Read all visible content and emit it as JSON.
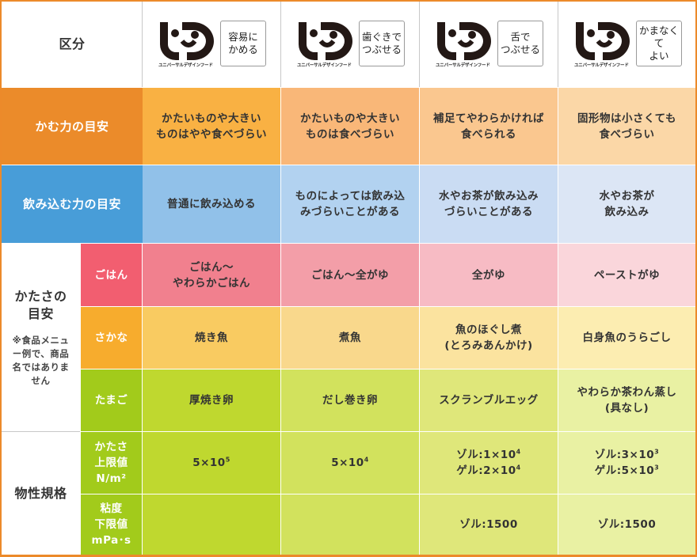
{
  "table": {
    "header": {
      "label": "区分",
      "logo_caption": "ユニバーサルデザインフード",
      "categories": [
        {
          "label": "容易に\nかめる"
        },
        {
          "label": "歯ぐきで\nつぶせる"
        },
        {
          "label": "舌で\nつぶせる"
        },
        {
          "label": "かまなくて\nよい"
        }
      ]
    },
    "rows": {
      "chewing": {
        "label": "かむ力の目安",
        "color": "#eb8b2a",
        "values": [
          "かたいものや大きい\nものはやや食べづらい",
          "かたいものや大きい\nものは食べづらい",
          "補足てやわらかければ\n食べられる",
          "固形物は小さくても\n食べづらい"
        ],
        "cell_colors": [
          "#f9b143",
          "#f9b778",
          "#fac78f",
          "#fbd7a7"
        ]
      },
      "swallowing": {
        "label": "飲み込む力の目安",
        "color": "#489dd8",
        "values": [
          "普通に飲み込める",
          "ものによっては飲み込\nみづらいことがある",
          "水やお茶が飲み込み\nづらいことがある",
          "水やお茶が\n飲み込み"
        ],
        "cell_colors": [
          "#91c1e9",
          "#b2d2f0",
          "#cadcf3",
          "#dce6f5"
        ]
      },
      "hardness": {
        "label": "かたさの\n目安",
        "note": "※食品メニュー例で、商品名ではありません",
        "note_display": "※食品メニュ\nー例で、商品\n名ではありま\nせん",
        "sub_rows": [
          {
            "label": "ごはん",
            "color": "#f25e70",
            "values": [
              "ごはん〜\nやわらかごはん",
              "ごはん〜全がゆ",
              "全がゆ",
              "ペーストがゆ"
            ],
            "cell_colors": [
              "#f1808e",
              "#f39ea8",
              "#f7bbc4",
              "#fad6db"
            ]
          },
          {
            "label": "さかな",
            "color": "#f7ac2d",
            "values": [
              "焼き魚",
              "煮魚",
              "魚のほぐし煮\n(とろみあんかけ)",
              "白身魚のうらごし"
            ],
            "cell_colors": [
              "#f9cb61",
              "#f9d88c",
              "#fbe39f",
              "#fcedb1"
            ]
          },
          {
            "label": "たまご",
            "color": "#a2cb1b",
            "values": [
              "厚焼き卵",
              "だし巻き卵",
              "スクランブルエッグ",
              "やわらか茶わん蒸し\n(具なし)"
            ],
            "cell_colors": [
              "#bfd82f",
              "#d2e25d",
              "#dfe77a",
              "#e9f1a3"
            ]
          }
        ]
      },
      "physical": {
        "label": "物性規格",
        "sub_rows": [
          {
            "label": "かたさ\n上限値\nN/m²",
            "color": "#a2cb1b",
            "values": [
              {
                "lines": [
                  {
                    "prefix": "",
                    "base": "5×10",
                    "exp": "5"
                  }
                ]
              },
              {
                "lines": [
                  {
                    "prefix": "",
                    "base": "5×10",
                    "exp": "4"
                  }
                ]
              },
              {
                "lines": [
                  {
                    "prefix": "ゾル:",
                    "base": "1×10",
                    "exp": "4"
                  },
                  {
                    "prefix": "ゲル:",
                    "base": "2×10",
                    "exp": "4"
                  }
                ]
              },
              {
                "lines": [
                  {
                    "prefix": "ゾル:",
                    "base": "3×10",
                    "exp": "3"
                  },
                  {
                    "prefix": "ゲル:",
                    "base": "5×10",
                    "exp": "3"
                  }
                ]
              }
            ],
            "cell_colors": [
              "#bfd82f",
              "#d2e25d",
              "#dfe77a",
              "#e9f1a3"
            ]
          },
          {
            "label": "粘度\n下限値\nmPa･s",
            "color": "#a2cb1b",
            "values": [
              "",
              "",
              "ゾル:1500",
              "ゾル:1500"
            ],
            "cell_colors": [
              "#bfd82f",
              "#d2e25d",
              "#dfe77a",
              "#e9f1a3"
            ]
          }
        ]
      }
    },
    "colors": {
      "frame": "#ec8a2a",
      "grid_line": "#ffffff",
      "header_line": "#c8c8c8"
    }
  }
}
